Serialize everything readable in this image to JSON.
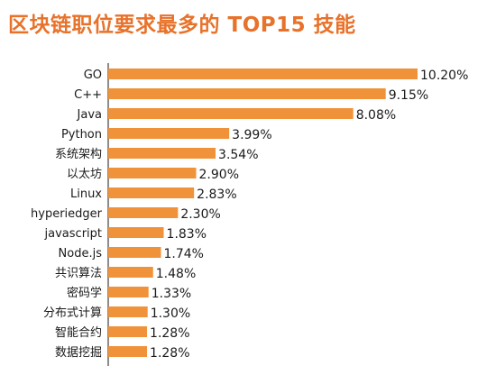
{
  "colors": {
    "title": "#e8722a",
    "bar": "#f0923a",
    "axis": "#1a1a1a",
    "text": "#1a1a1a"
  },
  "chart_data": {
    "type": "bar",
    "orientation": "horizontal",
    "title": "区块链职位要求最多的 TOP15 技能",
    "xlabel": "",
    "ylabel": "",
    "xlim": [
      0,
      10.2
    ],
    "grid": false,
    "legend": "none",
    "categories": [
      "GO",
      "C++",
      "Java",
      "Python",
      "系统架构",
      "以太坊",
      "Linux",
      "hyperiedger",
      "javascript",
      "Node.js",
      "共识算法",
      "密码学",
      "分布式计算",
      "智能合约",
      "数据挖掘"
    ],
    "values": [
      10.2,
      9.15,
      8.08,
      3.99,
      3.54,
      2.9,
      2.83,
      2.3,
      1.83,
      1.74,
      1.48,
      1.33,
      1.3,
      1.28,
      1.28
    ],
    "value_labels": [
      "10.20%",
      "9.15%",
      "8.08%",
      "3.99%",
      "3.54%",
      "2.90%",
      "2.83%",
      "2.30%",
      "1.83%",
      "1.74%",
      "1.48%",
      "1.33%",
      "1.30%",
      "1.28%",
      "1.28%"
    ]
  }
}
